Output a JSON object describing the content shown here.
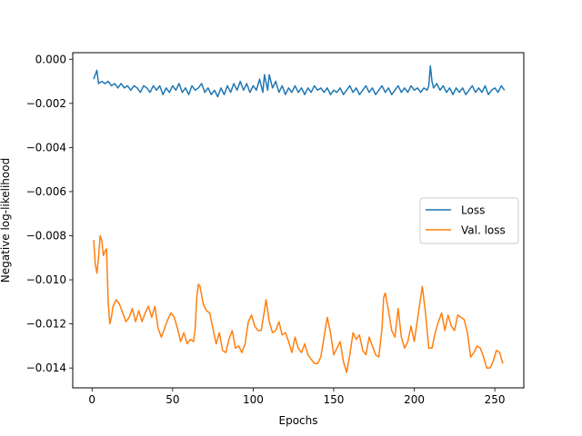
{
  "chart_data": {
    "type": "line",
    "title": "",
    "xlabel": "Epochs",
    "ylabel": "Negative log-likelihood",
    "xlim": [
      -12,
      268
    ],
    "ylim": [
      -0.0149,
      0.0003
    ],
    "xticks": [
      0,
      50,
      100,
      150,
      200,
      250
    ],
    "xtick_labels": [
      "0",
      "50",
      "100",
      "150",
      "200",
      "250"
    ],
    "yticks": [
      0.0,
      -0.002,
      -0.004,
      -0.006,
      -0.008,
      -0.01,
      -0.012,
      -0.014
    ],
    "ytick_labels": [
      "0.000",
      "−0.002",
      "−0.004",
      "−0.006",
      "−0.008",
      "−0.010",
      "−0.012",
      "−0.014"
    ],
    "grid": false,
    "legend": {
      "position": "right",
      "entries": [
        "Loss",
        "Val. loss"
      ]
    },
    "series": [
      {
        "name": "Loss",
        "color": "#1f77b4",
        "points": [
          [
            1,
            -0.0009
          ],
          [
            2,
            -0.0007
          ],
          [
            3,
            -0.0005
          ],
          [
            4,
            -0.0011
          ],
          [
            6,
            -0.001
          ],
          [
            8,
            -0.0011
          ],
          [
            10,
            -0.001
          ],
          [
            12,
            -0.0012
          ],
          [
            14,
            -0.0011
          ],
          [
            16,
            -0.0013
          ],
          [
            18,
            -0.0011
          ],
          [
            20,
            -0.0013
          ],
          [
            22,
            -0.0012
          ],
          [
            24,
            -0.0014
          ],
          [
            26,
            -0.0012
          ],
          [
            28,
            -0.0013
          ],
          [
            30,
            -0.0015
          ],
          [
            32,
            -0.0012
          ],
          [
            34,
            -0.0013
          ],
          [
            36,
            -0.0015
          ],
          [
            38,
            -0.0012
          ],
          [
            40,
            -0.0014
          ],
          [
            42,
            -0.0012
          ],
          [
            44,
            -0.0016
          ],
          [
            46,
            -0.0013
          ],
          [
            48,
            -0.0015
          ],
          [
            50,
            -0.0012
          ],
          [
            52,
            -0.0014
          ],
          [
            54,
            -0.0011
          ],
          [
            56,
            -0.0015
          ],
          [
            58,
            -0.0013
          ],
          [
            60,
            -0.0016
          ],
          [
            62,
            -0.0012
          ],
          [
            64,
            -0.0014
          ],
          [
            66,
            -0.0013
          ],
          [
            68,
            -0.0011
          ],
          [
            70,
            -0.0015
          ],
          [
            72,
            -0.0013
          ],
          [
            74,
            -0.0016
          ],
          [
            76,
            -0.0014
          ],
          [
            78,
            -0.0017
          ],
          [
            80,
            -0.0013
          ],
          [
            82,
            -0.0016
          ],
          [
            84,
            -0.0012
          ],
          [
            86,
            -0.0015
          ],
          [
            88,
            -0.0011
          ],
          [
            90,
            -0.0014
          ],
          [
            92,
            -0.001
          ],
          [
            94,
            -0.0014
          ],
          [
            96,
            -0.0011
          ],
          [
            98,
            -0.0015
          ],
          [
            100,
            -0.0012
          ],
          [
            102,
            -0.0014
          ],
          [
            104,
            -0.0009
          ],
          [
            106,
            -0.0015
          ],
          [
            107,
            -0.0007
          ],
          [
            109,
            -0.0014
          ],
          [
            110,
            -0.0007
          ],
          [
            112,
            -0.0013
          ],
          [
            114,
            -0.001
          ],
          [
            116,
            -0.0015
          ],
          [
            118,
            -0.0012
          ],
          [
            120,
            -0.0016
          ],
          [
            122,
            -0.0013
          ],
          [
            124,
            -0.0015
          ],
          [
            126,
            -0.0012
          ],
          [
            128,
            -0.0015
          ],
          [
            130,
            -0.0013
          ],
          [
            132,
            -0.0016
          ],
          [
            134,
            -0.0013
          ],
          [
            136,
            -0.0015
          ],
          [
            138,
            -0.0012
          ],
          [
            140,
            -0.0014
          ],
          [
            142,
            -0.0013
          ],
          [
            144,
            -0.0015
          ],
          [
            146,
            -0.0013
          ],
          [
            148,
            -0.0016
          ],
          [
            150,
            -0.0014
          ],
          [
            152,
            -0.0015
          ],
          [
            154,
            -0.0013
          ],
          [
            156,
            -0.0016
          ],
          [
            158,
            -0.0014
          ],
          [
            160,
            -0.0012
          ],
          [
            162,
            -0.0015
          ],
          [
            164,
            -0.0013
          ],
          [
            166,
            -0.0016
          ],
          [
            168,
            -0.0014
          ],
          [
            170,
            -0.0012
          ],
          [
            172,
            -0.0015
          ],
          [
            174,
            -0.0013
          ],
          [
            176,
            -0.0016
          ],
          [
            178,
            -0.0014
          ],
          [
            180,
            -0.0012
          ],
          [
            182,
            -0.0015
          ],
          [
            184,
            -0.0013
          ],
          [
            186,
            -0.0016
          ],
          [
            188,
            -0.0014
          ],
          [
            190,
            -0.0012
          ],
          [
            192,
            -0.0015
          ],
          [
            194,
            -0.0013
          ],
          [
            196,
            -0.0015
          ],
          [
            198,
            -0.0012
          ],
          [
            200,
            -0.0014
          ],
          [
            202,
            -0.0013
          ],
          [
            204,
            -0.0015
          ],
          [
            206,
            -0.0013
          ],
          [
            208,
            -0.0014
          ],
          [
            209,
            -0.0012
          ],
          [
            210,
            -0.0003
          ],
          [
            211,
            -0.001
          ],
          [
            212,
            -0.0013
          ],
          [
            214,
            -0.0011
          ],
          [
            216,
            -0.0014
          ],
          [
            218,
            -0.0012
          ],
          [
            220,
            -0.0015
          ],
          [
            222,
            -0.0013
          ],
          [
            224,
            -0.0016
          ],
          [
            226,
            -0.0013
          ],
          [
            228,
            -0.0015
          ],
          [
            230,
            -0.0013
          ],
          [
            232,
            -0.0016
          ],
          [
            234,
            -0.0014
          ],
          [
            236,
            -0.0012
          ],
          [
            238,
            -0.0015
          ],
          [
            240,
            -0.0013
          ],
          [
            242,
            -0.0015
          ],
          [
            244,
            -0.0012
          ],
          [
            246,
            -0.0016
          ],
          [
            248,
            -0.0014
          ],
          [
            250,
            -0.0013
          ],
          [
            252,
            -0.0015
          ],
          [
            254,
            -0.0012
          ],
          [
            256,
            -0.0014
          ]
        ]
      },
      {
        "name": "Val. loss",
        "color": "#ff7f0e",
        "points": [
          [
            1,
            -0.0082
          ],
          [
            2,
            -0.0093
          ],
          [
            3,
            -0.0097
          ],
          [
            4,
            -0.009
          ],
          [
            5,
            -0.008
          ],
          [
            6,
            -0.0082
          ],
          [
            7,
            -0.0089
          ],
          [
            8,
            -0.0087
          ],
          [
            9,
            -0.0086
          ],
          [
            10,
            -0.011
          ],
          [
            11,
            -0.012
          ],
          [
            12,
            -0.0117
          ],
          [
            13,
            -0.0112
          ],
          [
            15,
            -0.0109
          ],
          [
            17,
            -0.0111
          ],
          [
            19,
            -0.0115
          ],
          [
            21,
            -0.0119
          ],
          [
            23,
            -0.0117
          ],
          [
            25,
            -0.0113
          ],
          [
            27,
            -0.0119
          ],
          [
            29,
            -0.0114
          ],
          [
            31,
            -0.0119
          ],
          [
            33,
            -0.0115
          ],
          [
            35,
            -0.0112
          ],
          [
            37,
            -0.0117
          ],
          [
            39,
            -0.0112
          ],
          [
            41,
            -0.0122
          ],
          [
            43,
            -0.0126
          ],
          [
            45,
            -0.0122
          ],
          [
            47,
            -0.0118
          ],
          [
            49,
            -0.0115
          ],
          [
            51,
            -0.0117
          ],
          [
            53,
            -0.0122
          ],
          [
            55,
            -0.0128
          ],
          [
            57,
            -0.0124
          ],
          [
            59,
            -0.0129
          ],
          [
            61,
            -0.0127
          ],
          [
            63,
            -0.0128
          ],
          [
            64,
            -0.0122
          ],
          [
            65,
            -0.0108
          ],
          [
            66,
            -0.0102
          ],
          [
            67,
            -0.0103
          ],
          [
            69,
            -0.0111
          ],
          [
            71,
            -0.0114
          ],
          [
            73,
            -0.0115
          ],
          [
            75,
            -0.0122
          ],
          [
            77,
            -0.0129
          ],
          [
            79,
            -0.0124
          ],
          [
            81,
            -0.0132
          ],
          [
            83,
            -0.0133
          ],
          [
            85,
            -0.0127
          ],
          [
            87,
            -0.0123
          ],
          [
            89,
            -0.0131
          ],
          [
            91,
            -0.013
          ],
          [
            93,
            -0.0133
          ],
          [
            95,
            -0.0129
          ],
          [
            97,
            -0.0119
          ],
          [
            99,
            -0.0116
          ],
          [
            101,
            -0.0121
          ],
          [
            103,
            -0.0123
          ],
          [
            105,
            -0.0123
          ],
          [
            107,
            -0.0114
          ],
          [
            108,
            -0.0109
          ],
          [
            110,
            -0.0119
          ],
          [
            112,
            -0.0124
          ],
          [
            114,
            -0.0123
          ],
          [
            116,
            -0.0119
          ],
          [
            118,
            -0.0125
          ],
          [
            120,
            -0.0124
          ],
          [
            122,
            -0.0128
          ],
          [
            124,
            -0.0133
          ],
          [
            126,
            -0.0126
          ],
          [
            128,
            -0.0131
          ],
          [
            130,
            -0.0133
          ],
          [
            132,
            -0.0129
          ],
          [
            134,
            -0.0134
          ],
          [
            136,
            -0.0136
          ],
          [
            138,
            -0.0138
          ],
          [
            140,
            -0.0138
          ],
          [
            142,
            -0.0135
          ],
          [
            144,
            -0.0126
          ],
          [
            146,
            -0.0117
          ],
          [
            148,
            -0.0124
          ],
          [
            150,
            -0.0134
          ],
          [
            152,
            -0.0131
          ],
          [
            154,
            -0.0128
          ],
          [
            156,
            -0.0137
          ],
          [
            158,
            -0.0142
          ],
          [
            160,
            -0.0134
          ],
          [
            162,
            -0.0124
          ],
          [
            164,
            -0.0127
          ],
          [
            166,
            -0.0125
          ],
          [
            168,
            -0.0132
          ],
          [
            170,
            -0.0134
          ],
          [
            172,
            -0.0126
          ],
          [
            174,
            -0.013
          ],
          [
            176,
            -0.0134
          ],
          [
            178,
            -0.0135
          ],
          [
            180,
            -0.0122
          ],
          [
            181,
            -0.0108
          ],
          [
            182,
            -0.0106
          ],
          [
            184,
            -0.0114
          ],
          [
            186,
            -0.0123
          ],
          [
            188,
            -0.0126
          ],
          [
            190,
            -0.0113
          ],
          [
            192,
            -0.0126
          ],
          [
            194,
            -0.0131
          ],
          [
            196,
            -0.0128
          ],
          [
            198,
            -0.0121
          ],
          [
            200,
            -0.0128
          ],
          [
            202,
            -0.0118
          ],
          [
            204,
            -0.0108
          ],
          [
            205,
            -0.0103
          ],
          [
            207,
            -0.0115
          ],
          [
            209,
            -0.0131
          ],
          [
            211,
            -0.0131
          ],
          [
            213,
            -0.0124
          ],
          [
            215,
            -0.0119
          ],
          [
            217,
            -0.0115
          ],
          [
            219,
            -0.0123
          ],
          [
            221,
            -0.0116
          ],
          [
            223,
            -0.0121
          ],
          [
            225,
            -0.0123
          ],
          [
            227,
            -0.0116
          ],
          [
            229,
            -0.0117
          ],
          [
            231,
            -0.0118
          ],
          [
            233,
            -0.0124
          ],
          [
            235,
            -0.0135
          ],
          [
            237,
            -0.0133
          ],
          [
            239,
            -0.013
          ],
          [
            241,
            -0.0131
          ],
          [
            243,
            -0.0135
          ],
          [
            245,
            -0.014
          ],
          [
            247,
            -0.014
          ],
          [
            249,
            -0.0137
          ],
          [
            251,
            -0.0132
          ],
          [
            253,
            -0.0133
          ],
          [
            255,
            -0.0138
          ]
        ]
      }
    ]
  }
}
